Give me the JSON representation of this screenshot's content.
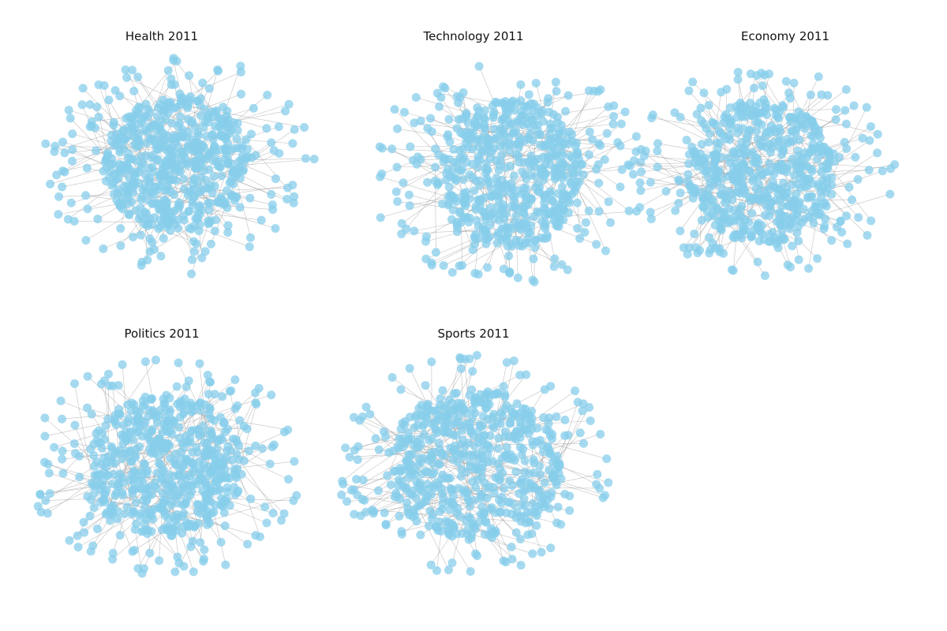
{
  "figure": {
    "panels": [
      {
        "title": "Health 2011"
      },
      {
        "title": "Technology 2011"
      },
      {
        "title": "Economy 2011"
      },
      {
        "title": "Politics 2011"
      },
      {
        "title": "Sports 2011"
      }
    ]
  },
  "colors": {
    "node": "#87CEEB",
    "edge": "#999999",
    "background": "#ffffff"
  }
}
